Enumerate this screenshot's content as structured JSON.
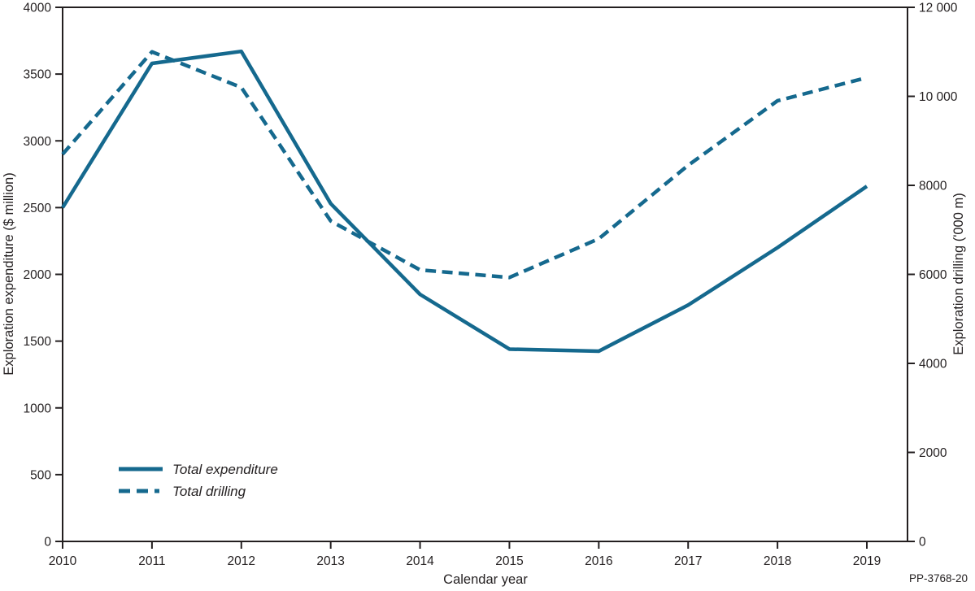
{
  "chart_data": {
    "type": "line",
    "x": [
      2010,
      2011,
      2012,
      2013,
      2014,
      2015,
      2016,
      2017,
      2018,
      2019
    ],
    "series": [
      {
        "name": "Total expenditure",
        "axis": "left",
        "style": "solid",
        "values": [
          2500,
          3580,
          3670,
          2530,
          1850,
          1440,
          1425,
          1770,
          2200,
          2660
        ]
      },
      {
        "name": "Total drilling",
        "axis": "right",
        "style": "dashed",
        "values": [
          8700,
          11000,
          10200,
          7200,
          6100,
          5930,
          6800,
          8450,
          9900,
          10420
        ]
      }
    ],
    "title": "",
    "xlabel": "Calendar year",
    "ylabel_left": "Exploration expenditure ($ million)",
    "ylabel_right": "Exploration drilling ('000 m)",
    "ylim_left": [
      0,
      4000
    ],
    "ylim_right": [
      0,
      12000
    ],
    "xticks": [
      "2010",
      "2011",
      "2012",
      "2013",
      "2014",
      "2015",
      "2016",
      "2017",
      "2018",
      "2019"
    ],
    "yticks_left": [
      {
        "value": 0,
        "label": "0"
      },
      {
        "value": 500,
        "label": "500"
      },
      {
        "value": 1000,
        "label": "1000"
      },
      {
        "value": 1500,
        "label": "1500"
      },
      {
        "value": 2000,
        "label": "2000"
      },
      {
        "value": 2500,
        "label": "2500"
      },
      {
        "value": 3000,
        "label": "3000"
      },
      {
        "value": 3500,
        "label": "3500"
      },
      {
        "value": 4000,
        "label": "4000"
      }
    ],
    "yticks_right": [
      {
        "value": 0,
        "label": "0"
      },
      {
        "value": 2000,
        "label": "2000"
      },
      {
        "value": 4000,
        "label": "4000"
      },
      {
        "value": 6000,
        "label": "6000"
      },
      {
        "value": 8000,
        "label": "8000"
      },
      {
        "value": 10000,
        "label": "10 000"
      },
      {
        "value": 12000,
        "label": "12 000"
      }
    ],
    "legend": [
      {
        "label": "Total expenditure",
        "style": "solid"
      },
      {
        "label": "Total drilling",
        "style": "dashed"
      }
    ],
    "legend_position": "inside-bottom-left",
    "grid": false,
    "line_color": "#15698e",
    "axis_color": "#231f20"
  },
  "footer": {
    "note": "PP-3768-20"
  }
}
